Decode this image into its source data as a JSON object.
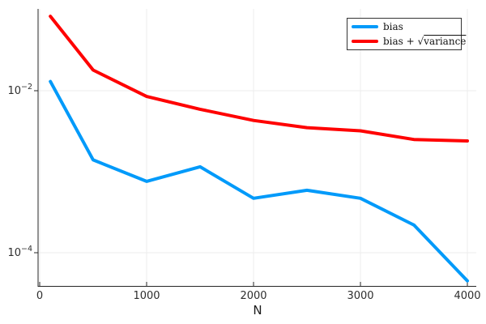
{
  "chart_data": {
    "type": "line",
    "title": "",
    "xlabel": "N",
    "ylabel": "",
    "x": [
      100,
      500,
      1000,
      1500,
      2000,
      2500,
      3000,
      3500,
      4000
    ],
    "series": [
      {
        "name": "bias",
        "color": "#009AFA",
        "values": [
          0.013,
          0.0014,
          0.00076,
          0.00115,
          0.00047,
          0.00059,
          0.00047,
          0.00022,
          4.5e-05
        ]
      },
      {
        "name": "bias + √variance",
        "color": "#FF0000",
        "values": [
          0.083,
          0.018,
          0.0085,
          0.0059,
          0.0043,
          0.0035,
          0.0032,
          0.0025,
          0.0024
        ]
      }
    ],
    "yscale": "log",
    "xlim": [
      -15,
      4083
    ],
    "ylim_log": [
      -4.42,
      -0.99
    ],
    "xticks": {
      "values": [
        0,
        1000,
        2000,
        3000,
        4000
      ],
      "labels": [
        "0",
        "1000",
        "2000",
        "3000",
        "4000"
      ]
    },
    "yticks": {
      "values": [
        0.01,
        0.0001
      ],
      "labels": [
        {
          "base": "10",
          "exp": "−2"
        },
        {
          "base": "10",
          "exp": "−4"
        }
      ]
    },
    "grid": true,
    "legend_position": "top-right"
  },
  "legend": {
    "items": [
      {
        "prefix": "bias",
        "radical": "",
        "radicand": ""
      },
      {
        "prefix": "bias + ",
        "radical": "√",
        "radicand": "variance"
      }
    ]
  },
  "colors": {
    "axis": "#262626",
    "grid": "#ECECEC",
    "tick_label": "#2E2E2E",
    "background": "#FFFFFF",
    "legend_border": "#333333"
  }
}
